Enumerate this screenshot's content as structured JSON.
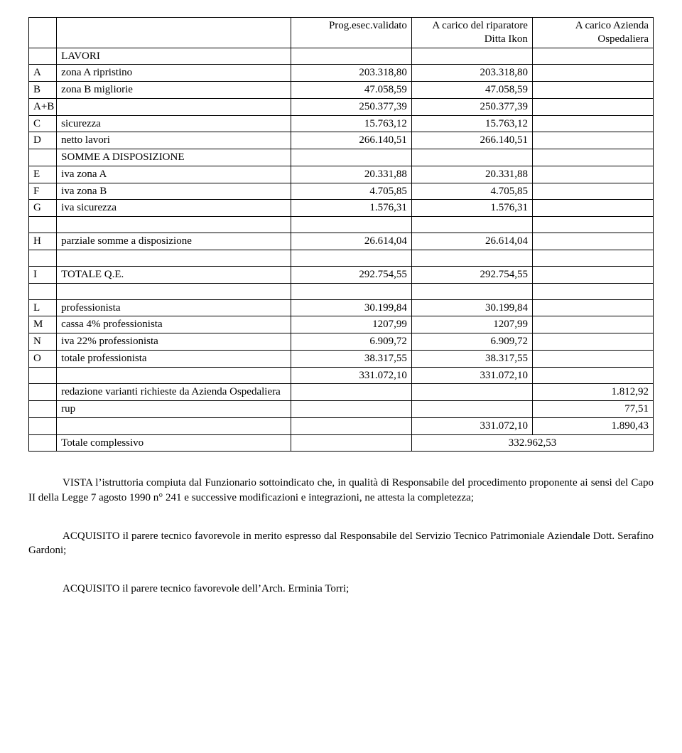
{
  "table": {
    "headers": {
      "col3": "Prog.esec.validato",
      "col4": "A carico del riparatore Ditta Ikon",
      "col5": "A carico Azienda Ospedaliera"
    },
    "rows": [
      {
        "code": "",
        "desc": "LAVORI",
        "v1": "",
        "v2": "",
        "v3": ""
      },
      {
        "code": "A",
        "desc": "zona A ripristino",
        "v1": "203.318,80",
        "v2": "203.318,80",
        "v3": ""
      },
      {
        "code": "B",
        "desc": "zona B migliorie",
        "v1": "47.058,59",
        "v2": "47.058,59",
        "v3": ""
      },
      {
        "code": "A+B",
        "desc": "",
        "v1": "250.377,39",
        "v2": "250.377,39",
        "v3": ""
      },
      {
        "code": "C",
        "desc": "sicurezza",
        "v1": "15.763,12",
        "v2": "15.763,12",
        "v3": ""
      },
      {
        "code": "D",
        "desc": "netto lavori",
        "v1": "266.140,51",
        "v2": "266.140,51",
        "v3": ""
      },
      {
        "code": "",
        "desc": "SOMME A DISPOSIZIONE",
        "v1": "",
        "v2": "",
        "v3": ""
      },
      {
        "code": "E",
        "desc": "iva zona A",
        "v1": "20.331,88",
        "v2": "20.331,88",
        "v3": ""
      },
      {
        "code": "F",
        "desc": "iva zona B",
        "v1": "4.705,85",
        "v2": "4.705,85",
        "v3": ""
      },
      {
        "code": "G",
        "desc": "iva sicurezza",
        "v1": "1.576,31",
        "v2": "1.576,31",
        "v3": ""
      },
      {
        "code": "",
        "desc": "",
        "v1": "",
        "v2": "",
        "v3": ""
      },
      {
        "code": "H",
        "desc": "parziale somme a disposizione",
        "v1": "26.614,04",
        "v2": "26.614,04",
        "v3": ""
      },
      {
        "code": "",
        "desc": "",
        "v1": "",
        "v2": "",
        "v3": ""
      },
      {
        "code": "I",
        "desc": "TOTALE Q.E.",
        "v1": "292.754,55",
        "v2": "292.754,55",
        "v3": ""
      },
      {
        "code": "",
        "desc": "",
        "v1": "",
        "v2": "",
        "v3": ""
      },
      {
        "code": "L",
        "desc": "professionista",
        "v1": "30.199,84",
        "v2": "30.199,84",
        "v3": ""
      },
      {
        "code": "M",
        "desc": "cassa 4% professionista",
        "v1": "1207,99",
        "v2": "1207,99",
        "v3": ""
      },
      {
        "code": "N",
        "desc": "iva 22% professionista",
        "v1": "6.909,72",
        "v2": "6.909,72",
        "v3": ""
      },
      {
        "code": "O",
        "desc": "totale professionista",
        "v1": "38.317,55",
        "v2": "38.317,55",
        "v3": ""
      },
      {
        "code": "",
        "desc": "",
        "v1": "331.072,10",
        "v2": "331.072,10",
        "v3": ""
      },
      {
        "code": "",
        "desc": "redazione varianti richieste da Azienda Ospedaliera",
        "v1": "",
        "v2": "",
        "v3": "1.812,92"
      },
      {
        "code": "",
        "desc": "rup",
        "v1": "",
        "v2": "",
        "v3": "77,51"
      },
      {
        "code": "",
        "desc": "",
        "v1": "",
        "v2": "331.072,10",
        "v3": "1.890,43"
      },
      {
        "code": "",
        "desc": "Totale complessivo",
        "v1": "",
        "v2": "332.962,53",
        "v3": "",
        "span45": true
      }
    ]
  },
  "paragraphs": {
    "p1": "VISTA l’istruttoria compiuta dal Funzionario sottoindicato che, in qualità di Responsabile del procedimento proponente ai sensi del Capo II della Legge 7 agosto 1990 n° 241 e successive modificazioni e integrazioni, ne attesta la completezza;",
    "p2": "ACQUISITO il parere tecnico favorevole in merito espresso dal Responsabile del Servizio Tecnico Patrimoniale Aziendale Dott. Serafino Gardoni;",
    "p3": "ACQUISITO il parere tecnico favorevole dell’Arch. Erminia Torri;"
  }
}
